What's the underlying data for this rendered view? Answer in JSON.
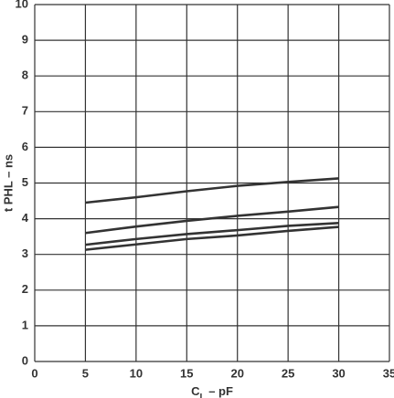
{
  "chart_data": {
    "type": "line",
    "xlabel": [
      "C",
      "L",
      " – pF"
    ],
    "ylabel": "t PHL – ns",
    "x": [
      5,
      10,
      15,
      20,
      25,
      30
    ],
    "series": [
      {
        "color": "#333333",
        "values": [
          4.45,
          4.6,
          4.77,
          4.92,
          5.03,
          5.13
        ]
      },
      {
        "color": "#333333",
        "values": [
          3.6,
          3.78,
          3.94,
          4.08,
          4.2,
          4.33
        ]
      },
      {
        "color": "#333333",
        "values": [
          3.27,
          3.43,
          3.57,
          3.68,
          3.8,
          3.88
        ]
      },
      {
        "color": "#333333",
        "values": [
          3.13,
          3.28,
          3.43,
          3.53,
          3.66,
          3.77
        ]
      }
    ],
    "xlim": [
      0,
      35
    ],
    "xticks": [
      0,
      5,
      10,
      15,
      20,
      25,
      30,
      35
    ],
    "ylim": [
      0,
      10
    ],
    "yticks": [
      0,
      1,
      2,
      3,
      4,
      5,
      6,
      7,
      8,
      9,
      10
    ],
    "grid": true
  }
}
